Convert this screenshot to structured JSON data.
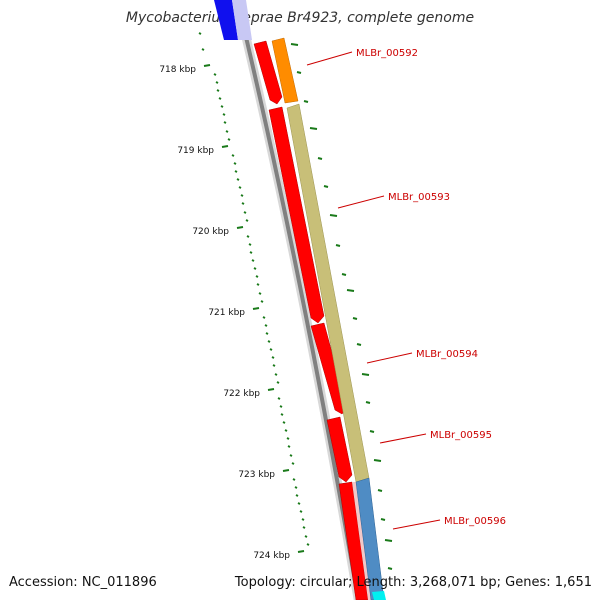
{
  "header": {
    "title": "Mycobacterium leprae Br4923, complete genome"
  },
  "footer": {
    "accession": "Accession: NC_011896",
    "summary": "Topology: circular; Length: 3,268,071 bp; Genes: 1,651"
  },
  "axis": {
    "tick_labels": [
      "718 kbp",
      "719 kbp",
      "720 kbp",
      "721 kbp",
      "722 kbp",
      "723 kbp",
      "724 kbp"
    ],
    "tick_color": "#1a7a1a"
  },
  "genes": {
    "labels": [
      "MLBr_00592",
      "MLBr_00593",
      "MLBr_00594",
      "MLBr_00595",
      "MLBr_00596"
    ],
    "label_color": "#cc0000"
  },
  "colors": {
    "backbone": "#808080",
    "cds_red": "#ff0000",
    "orange": "#ff8c00",
    "khaki": "#c8bf78",
    "steel_blue": "#4f8cc4",
    "blue": "#1010ee",
    "cyan": "#00f0f0"
  }
}
